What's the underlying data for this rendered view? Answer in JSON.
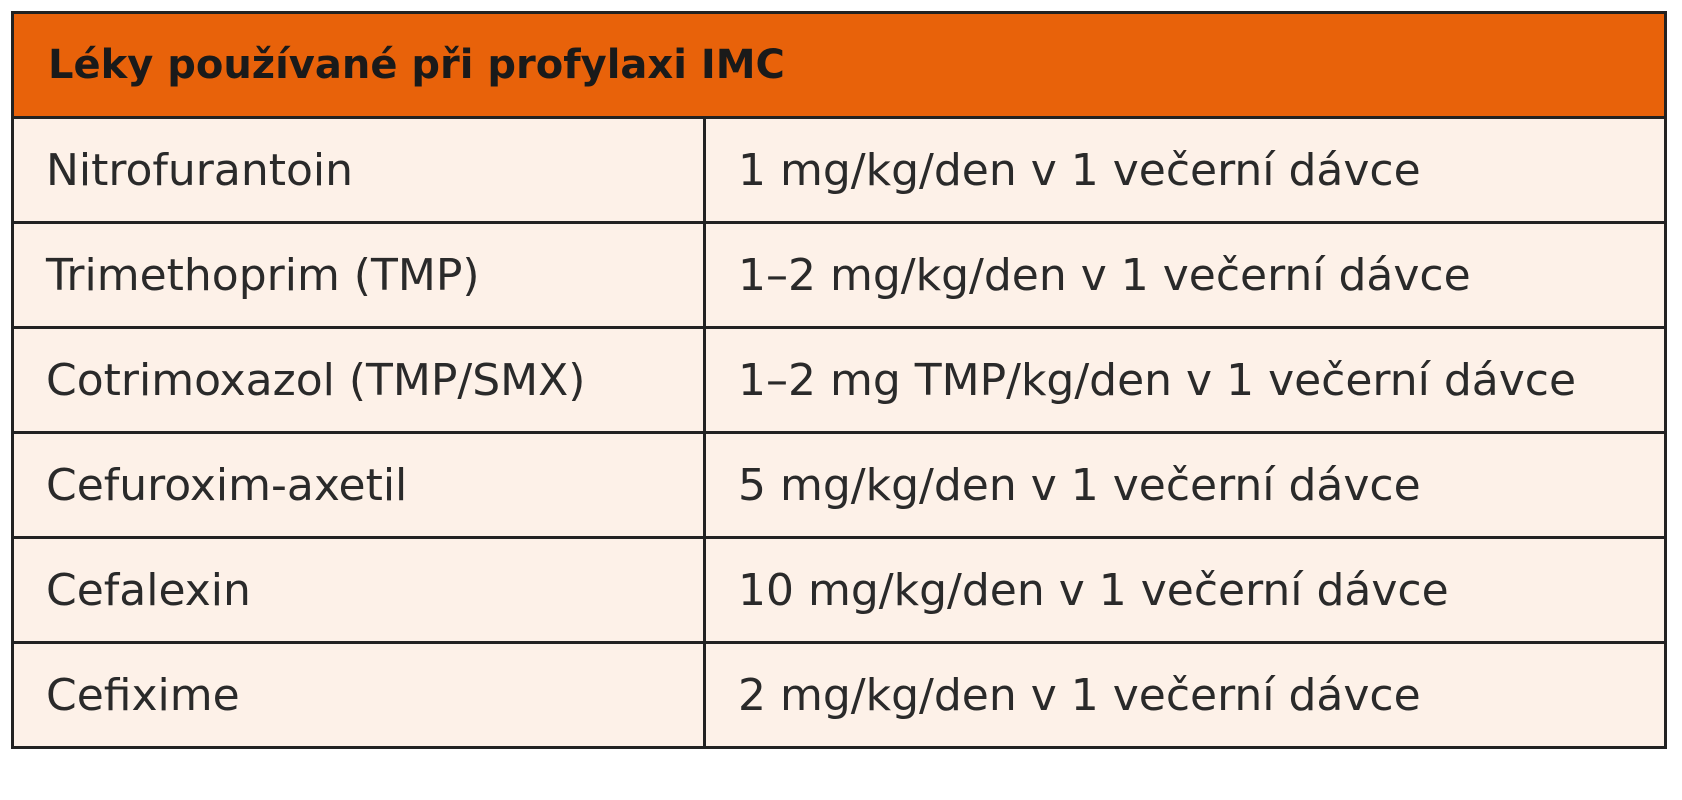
{
  "header": {
    "title": "Léky používané při profylaxi IMC"
  },
  "table": {
    "rows": [
      [
        "Nitrofurantoin",
        "1 mg/kg/den v 1 večerní dávce"
      ],
      [
        "Trimethoprim (TMP)",
        "1–2 mg/kg/den v 1 večerní dávce"
      ],
      [
        "Cotrimoxazol (TMP/SMX)",
        "1–2 mg TMP/kg/den v 1 večerní dávce"
      ],
      [
        "Cefuroxim-axetil",
        "5 mg/kg/den v 1 večerní dávce"
      ],
      [
        "Cefalexin",
        "10 mg/kg/den v 1 večerní dávce"
      ],
      [
        "Cefixime",
        "2 mg/kg/den v 1 večerní dávce"
      ]
    ]
  }
}
